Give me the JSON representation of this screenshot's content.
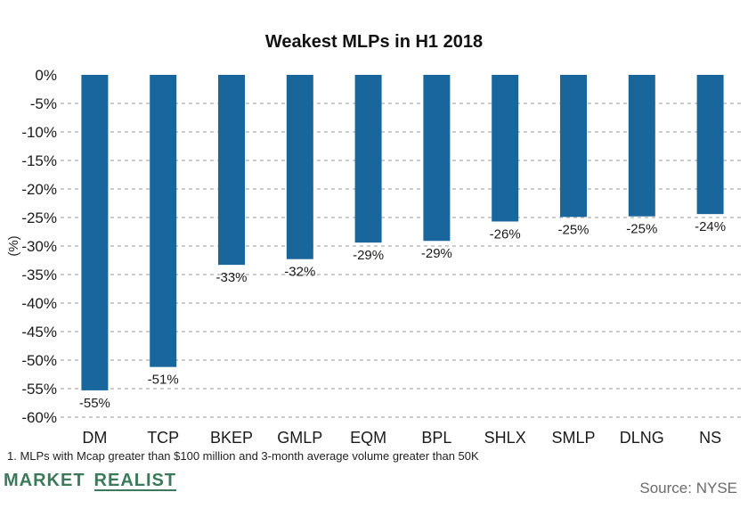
{
  "chart_data": {
    "type": "bar",
    "title": "Weakest MLPs in H1 2018",
    "ylabel": "(%)",
    "xlabel": "",
    "categories": [
      "DM",
      "TCP",
      "BKEP",
      "GMLP",
      "EQM",
      "BPL",
      "SHLX",
      "SMLP",
      "DLNG",
      "NS"
    ],
    "values": [
      -55.3,
      -51.2,
      -33.3,
      -32.3,
      -29.4,
      -29.1,
      -25.7,
      -24.9,
      -24.8,
      -24.4
    ],
    "data_labels": [
      "-55%",
      "-51%",
      "-33%",
      "-32%",
      "-29%",
      "-29%",
      "-26%",
      "-25%",
      "-25%",
      "-24%"
    ],
    "ylim": [
      -60,
      0
    ],
    "yticks": [
      0,
      -5,
      -10,
      -15,
      -20,
      -25,
      -30,
      -35,
      -40,
      -45,
      -50,
      -55,
      -60
    ],
    "ytick_labels": [
      "0%",
      "-5%",
      "-10%",
      "-15%",
      "-20%",
      "-25%",
      "-30%",
      "-35%",
      "-40%",
      "-45%",
      "-50%",
      "-55%",
      "-60%"
    ],
    "grid": true,
    "bar_color": "#18669b"
  },
  "footnote": "1.  MLPs with Mcap greater than $100 million and 3-month average volume greater than 50K",
  "brand": {
    "word1": "MARKET",
    "word2": "REALIST"
  },
  "source": "Source: NYSE"
}
